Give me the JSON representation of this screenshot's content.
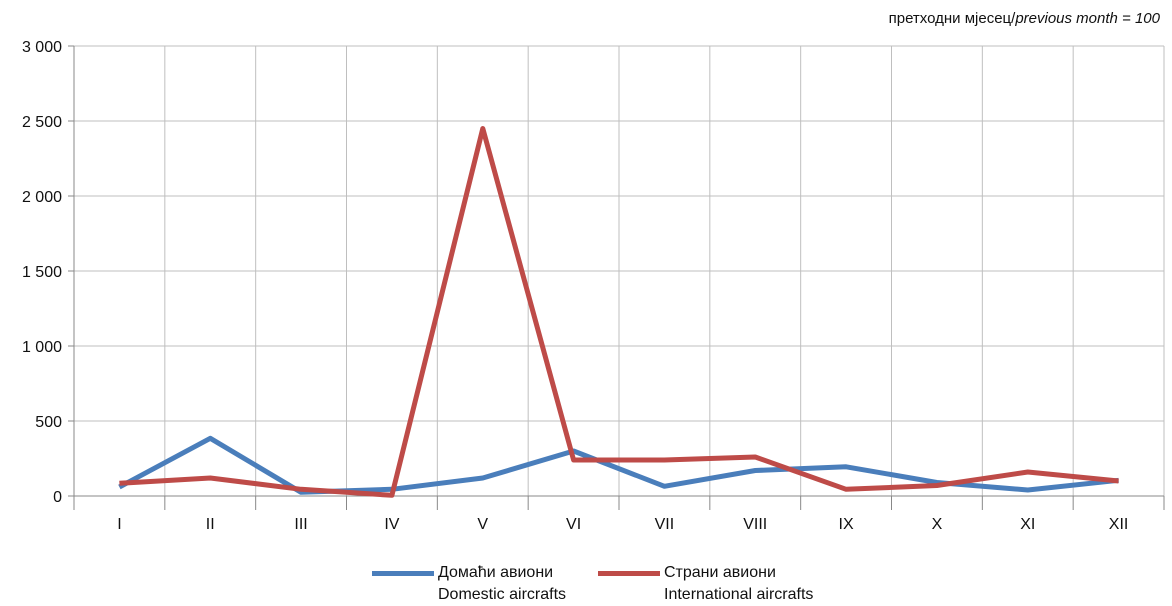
{
  "note": {
    "prefix": "претходни мјесец/",
    "italic": "previous month = 100"
  },
  "legend": [
    {
      "line1": "Домаћи авиони",
      "line2": "Domestic aircrafts"
    },
    {
      "line1": "Страни авиони",
      "line2": "International aircrafts"
    }
  ],
  "chart_data": {
    "type": "line",
    "categories": [
      "I",
      "II",
      "III",
      "IV",
      "V",
      "VI",
      "VII",
      "VIII",
      "IX",
      "X",
      "XI",
      "XII"
    ],
    "ylim": [
      0,
      3000
    ],
    "yticks": [
      0,
      500,
      1000,
      1500,
      2000,
      2500,
      3000
    ],
    "ytick_labels": [
      "0",
      "500",
      "1 000",
      "1 500",
      "2 000",
      "2 500",
      "3 000"
    ],
    "grid": true,
    "legend_position": "bottom",
    "series": [
      {
        "name": "Домаћи авиони / Domestic aircrafts",
        "color": "#4a7ebb",
        "values": [
          60,
          385,
          25,
          45,
          120,
          300,
          65,
          170,
          195,
          90,
          40,
          105
        ]
      },
      {
        "name": "Страни авиони / International aircrafts",
        "color": "#be4b48",
        "values": [
          85,
          120,
          45,
          5,
          2450,
          240,
          240,
          260,
          45,
          70,
          160,
          100
        ]
      }
    ]
  }
}
